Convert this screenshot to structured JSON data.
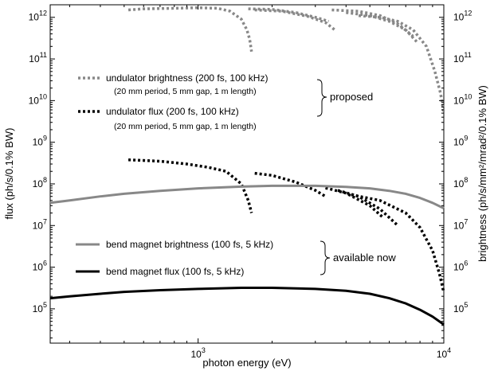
{
  "chart_data": {
    "type": "line",
    "xlabel": "photon energy (eV)",
    "ylabel_left": "flux (ph/s/0.1% BW)",
    "ylabel_right": "brightness (ph/s/mm²/mrad²/0.1% BW)",
    "xscale": "log",
    "yscale": "log",
    "xlim": [
      250,
      10000
    ],
    "ylim": [
      15000.0,
      2000000000000.0
    ],
    "x_ticks": [
      {
        "value": 1000,
        "label": "10",
        "exp": "3"
      },
      {
        "value": 10000,
        "label": "10",
        "exp": "4"
      }
    ],
    "y_ticks": [
      {
        "value": 100000.0,
        "label": "10",
        "exp": "5"
      },
      {
        "value": 1000000.0,
        "label": "10",
        "exp": "6"
      },
      {
        "value": 10000000.0,
        "label": "10",
        "exp": "7"
      },
      {
        "value": 100000000.0,
        "label": "10",
        "exp": "8"
      },
      {
        "value": 1000000000.0,
        "label": "10",
        "exp": "9"
      },
      {
        "value": 10000000000.0,
        "label": "10",
        "exp": "10"
      },
      {
        "value": 100000000000.0,
        "label": "10",
        "exp": "11"
      },
      {
        "value": 1000000000000.0,
        "label": "10",
        "exp": "12"
      }
    ],
    "colors": {
      "gray": "#888888",
      "black": "#000000"
    },
    "series": [
      {
        "legend_key": "ub",
        "style": "dotted",
        "color": "#888888",
        "segment": 1,
        "x": [
          520,
          600,
          800,
          1000,
          1200,
          1350,
          1500,
          1580,
          1620,
          1650
        ],
        "y": [
          1500000000000.0,
          1600000000000.0,
          1650000000000.0,
          1700000000000.0,
          1650000000000.0,
          1400000000000.0,
          900000000000.0,
          500000000000.0,
          300000000000.0,
          150000000000.0
        ]
      },
      {
        "legend_key": "ub",
        "style": "dotted",
        "color": "#888888",
        "segment": 2,
        "x": [
          1600,
          2000,
          2500,
          3000,
          3400
        ],
        "y": [
          1600000000000.0,
          1550000000000.0,
          1300000000000.0,
          1000000000000.0,
          800000000000.0
        ]
      },
      {
        "legend_key": "ub",
        "style": "dotted",
        "color": "#888888",
        "segment": 3,
        "x": [
          1700,
          2200,
          2800,
          3300,
          3600
        ],
        "y": [
          1500000000000.0,
          1400000000000.0,
          1050000000000.0,
          750000000000.0,
          500000000000.0
        ]
      },
      {
        "legend_key": "ub",
        "style": "dotted",
        "color": "#888888",
        "segment": 4,
        "x": [
          3500,
          4500,
          5500,
          6500,
          7500
        ],
        "y": [
          1500000000000.0,
          1400000000000.0,
          1100000000000.0,
          700000000000.0,
          350000000000.0
        ]
      },
      {
        "legend_key": "ub",
        "style": "dotted",
        "color": "#888888",
        "segment": 5,
        "x": [
          4000,
          5000,
          6000,
          7000,
          7800
        ],
        "y": [
          1300000000000.0,
          1100000000000.0,
          800000000000.0,
          500000000000.0,
          250000000000.0
        ]
      },
      {
        "legend_key": "ub",
        "style": "dotted",
        "color": "#888888",
        "segment": 6,
        "x": [
          4500,
          5500,
          6500,
          7500,
          8500,
          9200,
          9700,
          10000
        ],
        "y": [
          1100000000000.0,
          1000000000000.0,
          800000000000.0,
          500000000000.0,
          200000000000.0,
          50000000000.0,
          15000000000.0,
          5000000000.0
        ]
      },
      {
        "legend_key": "uf",
        "style": "dotted",
        "color": "#000000",
        "segment": 1,
        "x": [
          520,
          700,
          900,
          1100,
          1300,
          1500,
          1600,
          1650
        ],
        "y": [
          380000000.0,
          350000000.0,
          300000000.0,
          250000000.0,
          200000000.0,
          100000000.0,
          40000000.0,
          20000000.0
        ]
      },
      {
        "legend_key": "uf",
        "style": "dotted",
        "color": "#000000",
        "segment": 2,
        "x": [
          1700,
          2000,
          2500,
          3000,
          3300
        ],
        "y": [
          180000000.0,
          160000000.0,
          110000000.0,
          70000000.0,
          50000000.0
        ]
      },
      {
        "legend_key": "uf",
        "style": "dotted",
        "color": "#000000",
        "segment": 3,
        "x": [
          3300,
          4000,
          5000,
          5700
        ],
        "y": [
          80000000.0,
          60000000.0,
          30000000.0,
          15000000.0
        ]
      },
      {
        "legend_key": "uf",
        "style": "dotted",
        "color": "#000000",
        "segment": 4,
        "x": [
          3700,
          4500,
          5500,
          6500
        ],
        "y": [
          70000000.0,
          50000000.0,
          25000000.0,
          10000000.0
        ]
      },
      {
        "legend_key": "uf",
        "style": "dotted",
        "color": "#000000",
        "segment": 5,
        "x": [
          4200,
          5500,
          7000,
          8000,
          9000,
          9600,
          10000
        ],
        "y": [
          55000000.0,
          40000000.0,
          20000000.0,
          9000000.0,
          2500000.0,
          700000.0,
          250000.0
        ]
      },
      {
        "legend_key": "bb",
        "style": "solid",
        "color": "#888888",
        "x": [
          250,
          300,
          400,
          500,
          700,
          1000,
          1500,
          2000,
          3000,
          4000,
          5000,
          6000,
          7000,
          8000,
          9000,
          10000
        ],
        "y": [
          35000000.0,
          40000000.0,
          50000000.0,
          58000000.0,
          68000000.0,
          78000000.0,
          86000000.0,
          90000000.0,
          90000000.0,
          85000000.0,
          78000000.0,
          68000000.0,
          58000000.0,
          46000000.0,
          35000000.0,
          26000000.0
        ]
      },
      {
        "legend_key": "bf",
        "style": "solid",
        "color": "#000000",
        "x": [
          250,
          300,
          400,
          500,
          700,
          1000,
          1500,
          2000,
          3000,
          4000,
          5000,
          6000,
          7000,
          8000,
          9000,
          10000
        ],
        "y": [
          180000.0,
          200000.0,
          230000.0,
          255000.0,
          280000.0,
          300000.0,
          320000.0,
          320000.0,
          300000.0,
          270000.0,
          230000.0,
          180000.0,
          135000.0,
          95000.0,
          65000.0,
          42000.0
        ]
      }
    ],
    "legend": {
      "ub": {
        "label": "undulator brightness (200 fs, 100 kHz)",
        "sub": "(20 mm period, 5 mm gap, 1 m length)"
      },
      "uf": {
        "label": "undulator flux (200 fs, 100 kHz)",
        "sub": "(20 mm period, 5 mm gap, 1 m length)"
      },
      "bb": {
        "label": "bend magnet brightness (100 fs, 5 kHz)"
      },
      "bf": {
        "label": "bend magnet flux (100 fs, 5 kHz)"
      }
    },
    "group_labels": {
      "proposed": "proposed",
      "available": "available now"
    }
  }
}
